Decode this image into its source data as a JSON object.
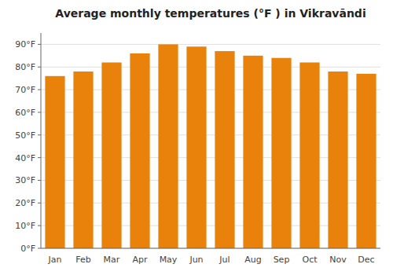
{
  "chart_data": {
    "type": "bar",
    "title": "Average monthly temperatures (°F ) in Vikravāndi",
    "categories": [
      "Jan",
      "Feb",
      "Mar",
      "Apr",
      "May",
      "Jun",
      "Jul",
      "Aug",
      "Sep",
      "Oct",
      "Nov",
      "Dec"
    ],
    "values": [
      76,
      78,
      82,
      86,
      90,
      89,
      87,
      85,
      84,
      82,
      78,
      77
    ],
    "color": "#E8820A",
    "ylim": [
      0,
      95
    ],
    "yticks": [
      {
        "value": 0,
        "label": "0°F"
      },
      {
        "value": 10,
        "label": "10°F"
      },
      {
        "value": 20,
        "label": "20°F"
      },
      {
        "value": 30,
        "label": "30°F"
      },
      {
        "value": 40,
        "label": "40°F"
      },
      {
        "value": 50,
        "label": "50°F"
      },
      {
        "value": 60,
        "label": "60°F"
      },
      {
        "value": 70,
        "label": "70°F"
      },
      {
        "value": 80,
        "label": "80°F"
      },
      {
        "value": 90,
        "label": "90°F"
      }
    ],
    "grid": true
  }
}
